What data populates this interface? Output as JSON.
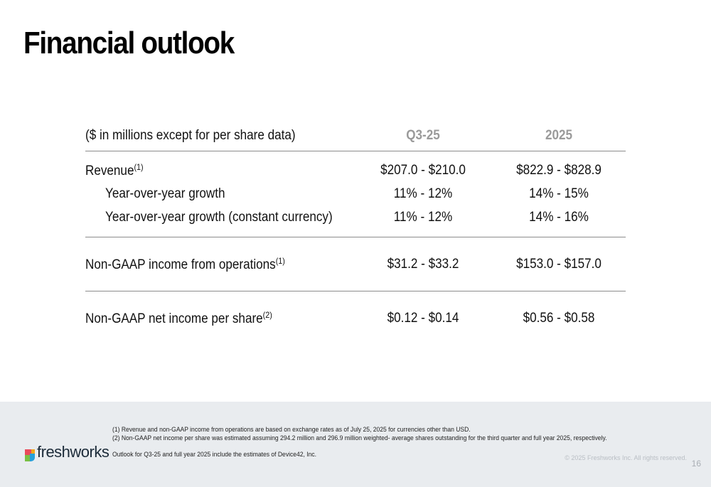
{
  "title": "Financial outlook",
  "table": {
    "header": {
      "label": "($ in millions except for per share data)",
      "col1": "Q3-25",
      "col2": "2025"
    },
    "revenue": {
      "label": "Revenue",
      "sup": "(1)",
      "q3": "$207.0 - $210.0",
      "fy": "$822.9 - $828.9"
    },
    "yoy": {
      "label": "Year-over-year growth",
      "q3": "11% - 12%",
      "fy": "14% - 15%"
    },
    "yoy_cc": {
      "label": "Year-over-year growth (constant currency)",
      "q3": "11% - 12%",
      "fy": "14% - 16%"
    },
    "ops": {
      "label": "Non-GAAP income from operations",
      "sup": "(1)",
      "q3": "$31.2 - $33.2",
      "fy": "$153.0 - $157.0"
    },
    "eps": {
      "label": "Non-GAAP net income per share",
      "sup": "(2)",
      "q3": "$0.12 - $0.14",
      "fy": "$0.56 - $0.58"
    }
  },
  "footer": {
    "logo_text": "freshworks",
    "note1": "(1) Revenue and non-GAAP income from operations are based on exchange rates as of July 25, 2025 for currencies other than USD.",
    "note2": "(2) Non-GAAP net income per share was estimated assuming 294.2 million and 296.9 million weighted- average shares outstanding for the third quarter and full year 2025, respectively.",
    "note3": "Outlook for Q3-25 and full year 2025 include the estimates of Device42, Inc.",
    "copyright": "© 2025 Freshworks Inc. All rights reserved.",
    "page_number": "16"
  },
  "colors": {
    "header_gray": "#9a9a9a",
    "footer_bg": "#e9ecef",
    "rule": "#8c8c8c"
  }
}
